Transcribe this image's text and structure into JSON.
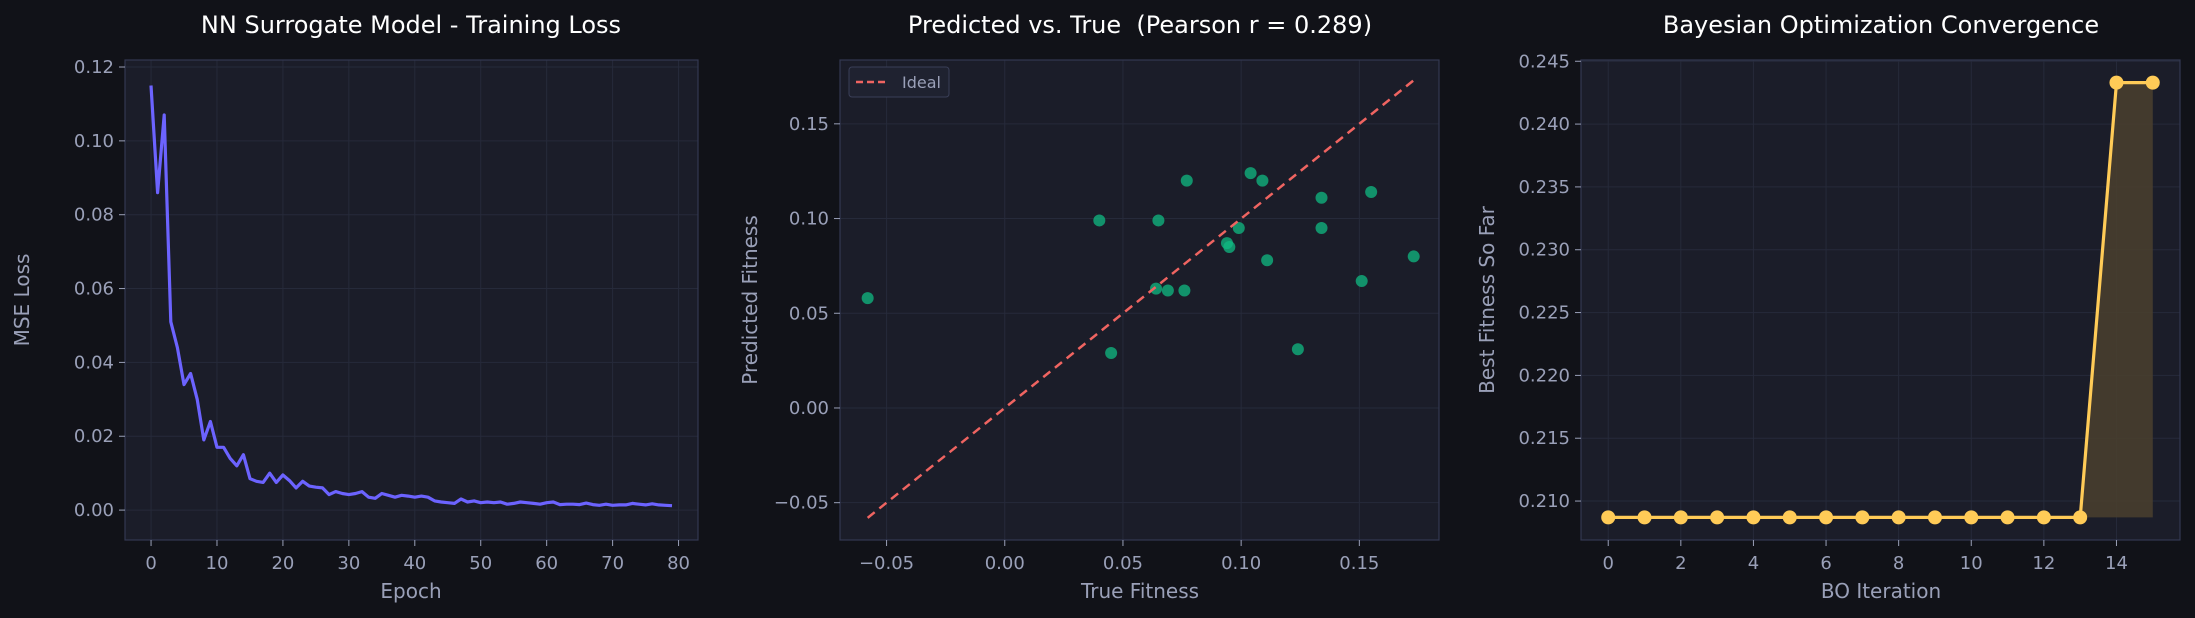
{
  "colors": {
    "figure_bg": "#111218",
    "axes_bg": "#1b1d29",
    "spine": "#333852",
    "grid": "#262a3a",
    "text": "#9aa0b8",
    "title": "#ffffff",
    "loss_line": "#6c63ff",
    "scatter": "#10b981",
    "ideal": "#ef6461",
    "bo_line": "#ffcb57",
    "bo_fill": "#4a3f2e"
  },
  "chart_data": [
    {
      "type": "line",
      "title": "NN Surrogate Model - Training Loss",
      "xlabel": "Epoch",
      "ylabel": "MSE Loss",
      "xlim": [
        -3.95,
        82.95
      ],
      "ylim": [
        -0.0081,
        0.1219
      ],
      "xticks": [
        0,
        10,
        20,
        30,
        40,
        50,
        60,
        70,
        80
      ],
      "yticks": [
        0.0,
        0.02,
        0.04,
        0.06,
        0.08,
        0.1,
        0.12
      ],
      "ytick_labels": [
        "0.00",
        "0.02",
        "0.04",
        "0.06",
        "0.08",
        "0.10",
        "0.12"
      ],
      "grid": true,
      "series": [
        {
          "x": [
            0,
            1,
            2,
            3,
            4,
            5,
            6,
            7,
            8,
            9,
            10,
            11,
            12,
            13,
            14,
            15,
            16,
            17,
            18,
            19,
            20,
            21,
            22,
            23,
            24,
            25,
            26,
            27,
            28,
            29,
            30,
            31,
            32,
            33,
            34,
            35,
            36,
            37,
            38,
            39,
            40,
            41,
            42,
            43,
            44,
            45,
            46,
            47,
            48,
            49,
            50,
            51,
            52,
            53,
            54,
            55,
            56,
            57,
            58,
            59,
            60,
            61,
            62,
            63,
            64,
            65,
            66,
            67,
            68,
            69,
            70,
            71,
            72,
            73,
            74,
            75,
            76,
            77,
            78,
            79
          ],
          "values": [
            0.115,
            0.086,
            0.107,
            0.051,
            0.044,
            0.034,
            0.037,
            0.03,
            0.019,
            0.024,
            0.017,
            0.017,
            0.014,
            0.012,
            0.015,
            0.0085,
            0.0078,
            0.0075,
            0.01,
            0.0075,
            0.0095,
            0.008,
            0.006,
            0.0078,
            0.0065,
            0.0062,
            0.006,
            0.0042,
            0.005,
            0.0045,
            0.0042,
            0.0045,
            0.005,
            0.0035,
            0.0032,
            0.0045,
            0.004,
            0.0035,
            0.004,
            0.0038,
            0.0035,
            0.0038,
            0.0035,
            0.0025,
            0.0022,
            0.002,
            0.0018,
            0.003,
            0.0022,
            0.0025,
            0.002,
            0.0022,
            0.002,
            0.0022,
            0.0016,
            0.0018,
            0.0022,
            0.002,
            0.0018,
            0.0016,
            0.002,
            0.0022,
            0.0015,
            0.0016,
            0.0016,
            0.0015,
            0.0019,
            0.0015,
            0.0013,
            0.0016,
            0.0013,
            0.0014,
            0.0014,
            0.0018,
            0.0016,
            0.0014,
            0.0017,
            0.0014,
            0.0013,
            0.0012
          ]
        }
      ]
    },
    {
      "type": "scatter",
      "title": "Predicted vs. True  (Pearson r = 0.289)",
      "xlabel": "True Fitness",
      "ylabel": "Predicted Fitness",
      "xlim": [
        -0.0697,
        0.1837
      ],
      "ylim": [
        -0.0697,
        0.1837
      ],
      "xticks": [
        -0.05,
        0.0,
        0.05,
        0.1,
        0.15
      ],
      "xtick_labels": [
        "−0.05",
        "0.00",
        "0.05",
        "0.10",
        "0.15"
      ],
      "yticks": [
        -0.05,
        0.0,
        0.05,
        0.1,
        0.15
      ],
      "ytick_labels": [
        "−0.05",
        "0.00",
        "0.05",
        "0.10",
        "0.15"
      ],
      "grid": true,
      "legend": {
        "position": "top-left",
        "entries": [
          "Ideal"
        ]
      },
      "points": [
        {
          "x": -0.058,
          "y": 0.058
        },
        {
          "x": 0.04,
          "y": 0.099
        },
        {
          "x": 0.045,
          "y": 0.029
        },
        {
          "x": 0.064,
          "y": 0.063
        },
        {
          "x": 0.065,
          "y": 0.099
        },
        {
          "x": 0.069,
          "y": 0.062
        },
        {
          "x": 0.076,
          "y": 0.062
        },
        {
          "x": 0.077,
          "y": 0.12
        },
        {
          "x": 0.094,
          "y": 0.087
        },
        {
          "x": 0.095,
          "y": 0.085
        },
        {
          "x": 0.099,
          "y": 0.095
        },
        {
          "x": 0.104,
          "y": 0.124
        },
        {
          "x": 0.109,
          "y": 0.12
        },
        {
          "x": 0.111,
          "y": 0.078
        },
        {
          "x": 0.124,
          "y": 0.031
        },
        {
          "x": 0.134,
          "y": 0.111
        },
        {
          "x": 0.134,
          "y": 0.095
        },
        {
          "x": 0.151,
          "y": 0.067
        },
        {
          "x": 0.155,
          "y": 0.114
        },
        {
          "x": 0.173,
          "y": 0.08
        }
      ],
      "ideal_line": {
        "name": "Ideal",
        "x": [
          -0.058,
          0.173
        ],
        "y": [
          -0.058,
          0.173
        ]
      }
    },
    {
      "type": "line",
      "title": "Bayesian Optimization Convergence",
      "xlabel": "BO Iteration",
      "ylabel": "Best Fitness So Far",
      "xlim": [
        -0.75,
        15.75
      ],
      "ylim": [
        0.2069,
        0.2451
      ],
      "xticks": [
        0,
        2,
        4,
        6,
        8,
        10,
        12,
        14
      ],
      "yticks": [
        0.21,
        0.215,
        0.22,
        0.225,
        0.23,
        0.235,
        0.24,
        0.245
      ],
      "ytick_labels": [
        "0.210",
        "0.215",
        "0.220",
        "0.225",
        "0.230",
        "0.235",
        "0.240",
        "0.245"
      ],
      "grid": true,
      "fill_baseline": 0.2087,
      "series": [
        {
          "x": [
            0,
            1,
            2,
            3,
            4,
            5,
            6,
            7,
            8,
            9,
            10,
            11,
            12,
            13,
            14,
            15
          ],
          "values": [
            0.2087,
            0.2087,
            0.2087,
            0.2087,
            0.2087,
            0.2087,
            0.2087,
            0.2087,
            0.2087,
            0.2087,
            0.2087,
            0.2087,
            0.2087,
            0.2087,
            0.2433,
            0.2433
          ]
        }
      ]
    }
  ]
}
